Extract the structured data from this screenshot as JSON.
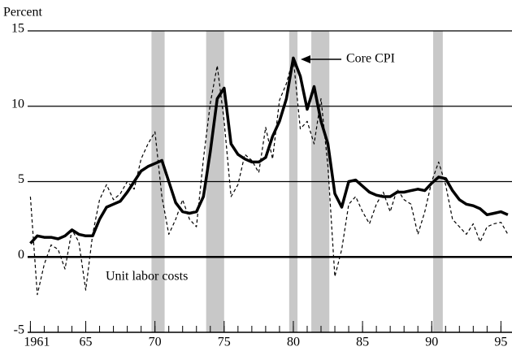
{
  "chart_data": {
    "type": "line",
    "y_label": "Percent",
    "annotations": [
      "Core CPI",
      "Unit labor costs"
    ],
    "x": [
      1961,
      1961.5,
      1962,
      1962.5,
      1963,
      1963.5,
      1964,
      1964.5,
      1965,
      1965.5,
      1966,
      1966.5,
      1967,
      1967.5,
      1968,
      1968.5,
      1969,
      1969.5,
      1970,
      1970.5,
      1971,
      1971.5,
      1972,
      1972.5,
      1973,
      1973.5,
      1974,
      1974.5,
      1975,
      1975.5,
      1976,
      1976.5,
      1977,
      1977.5,
      1978,
      1978.5,
      1979,
      1979.5,
      1980,
      1980.5,
      1981,
      1981.5,
      1982,
      1982.5,
      1983,
      1983.5,
      1984,
      1984.5,
      1985,
      1985.5,
      1986,
      1986.5,
      1987,
      1987.5,
      1988,
      1988.5,
      1989,
      1989.5,
      1990,
      1990.5,
      1991,
      1991.5,
      1992,
      1992.5,
      1993,
      1993.5,
      1994,
      1994.5,
      1995,
      1995.5
    ],
    "series": [
      {
        "name": "Core CPI",
        "color": "#000000",
        "style": "solid",
        "values": [
          0.9,
          1.4,
          1.3,
          1.3,
          1.2,
          1.4,
          1.8,
          1.5,
          1.4,
          1.4,
          2.5,
          3.3,
          3.5,
          3.7,
          4.3,
          5.0,
          5.7,
          6.0,
          6.2,
          6.4,
          5.0,
          3.6,
          3.0,
          2.9,
          3.0,
          4.0,
          7.0,
          10.5,
          11.2,
          7.5,
          6.8,
          6.5,
          6.3,
          6.3,
          6.6,
          8.0,
          9.0,
          10.5,
          13.2,
          12.0,
          9.8,
          11.3,
          9.0,
          7.5,
          4.2,
          3.3,
          5.0,
          5.1,
          4.7,
          4.3,
          4.1,
          4.0,
          4.0,
          4.3,
          4.3,
          4.4,
          4.5,
          4.4,
          4.9,
          5.3,
          5.2,
          4.4,
          3.8,
          3.5,
          3.4,
          3.2,
          2.8,
          2.9,
          3.0,
          2.8
        ]
      },
      {
        "name": "Unit labor costs",
        "color": "#000000",
        "style": "dashed",
        "values": [
          4.0,
          -2.5,
          -0.5,
          0.8,
          0.5,
          -0.8,
          1.8,
          1.0,
          -2.2,
          1.5,
          3.8,
          4.8,
          3.8,
          4.2,
          5.0,
          4.5,
          6.5,
          7.5,
          8.3,
          4.0,
          1.5,
          2.5,
          3.8,
          2.5,
          2.0,
          6.5,
          10.2,
          12.7,
          9.0,
          4.0,
          4.8,
          6.8,
          6.4,
          5.6,
          8.6,
          6.5,
          10.4,
          11.5,
          13.2,
          8.5,
          9.0,
          7.5,
          10.5,
          6.0,
          -1.3,
          0.5,
          3.5,
          4.0,
          3.0,
          2.2,
          3.5,
          4.3,
          3.0,
          4.5,
          3.8,
          3.5,
          1.5,
          3.0,
          5.0,
          6.3,
          4.8,
          2.5,
          2.0,
          1.5,
          2.2,
          1.0,
          2.0,
          2.2,
          2.3,
          1.5
        ]
      }
    ],
    "recessions": [
      [
        1969.75,
        1970.7
      ],
      [
        1973.7,
        1975.0
      ],
      [
        1979.7,
        1980.3
      ],
      [
        1981.3,
        1982.6
      ],
      [
        1990.1,
        1990.8
      ]
    ],
    "recession_color": "#c8c8c8",
    "xlim": [
      1960.8,
      1995.8
    ],
    "xticks": [
      1961,
      {
        "value": 1965,
        "label": "65"
      },
      {
        "value": 1970,
        "label": "70"
      },
      {
        "value": 1975,
        "label": "75"
      },
      {
        "value": 1980,
        "label": "80"
      },
      {
        "value": 1985,
        "label": "85"
      },
      {
        "value": 1990,
        "label": "90"
      },
      {
        "value": 1995,
        "label": "95"
      }
    ],
    "xminor": [
      1961,
      1962,
      1963,
      1964,
      1965,
      1966,
      1967,
      1968,
      1969,
      1970,
      1971,
      1972,
      1973,
      1974,
      1975,
      1976,
      1977,
      1978,
      1979,
      1980,
      1981,
      1982,
      1983,
      1984,
      1985,
      1986,
      1987,
      1988,
      1989,
      1990,
      1991,
      1992,
      1993,
      1994,
      1995
    ],
    "ylim": [
      -5,
      15
    ],
    "yticks": [
      -5,
      0,
      5,
      10,
      15
    ],
    "grid": true
  }
}
